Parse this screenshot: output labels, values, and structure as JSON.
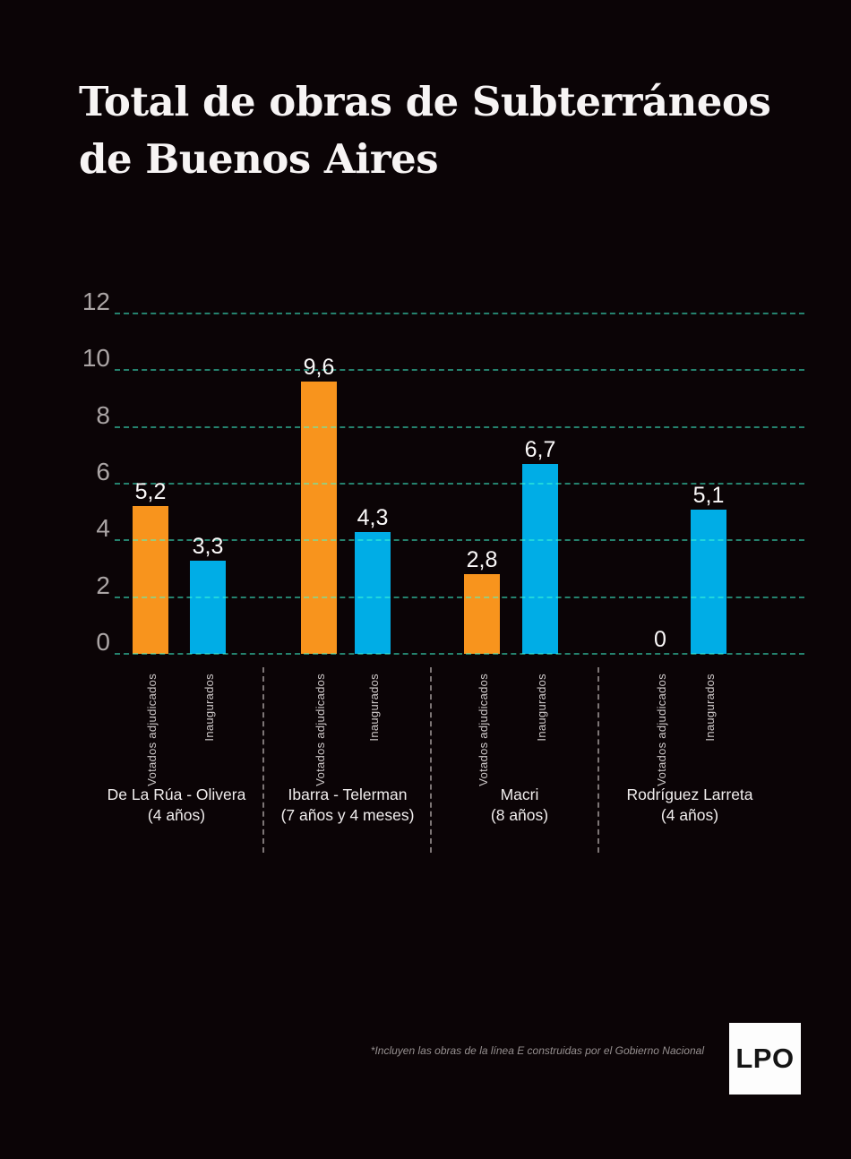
{
  "title": {
    "line1": "Total de obras de Subterráneos",
    "line2": "de Buenos Aires"
  },
  "chart_data": {
    "type": "bar",
    "title": "Total de obras de Subterráneos de Buenos Aires",
    "categories": [
      "De La Rúa - Olivera (4 años)",
      "Ibarra - Telerman (7 años y 4 meses)",
      "Macri (8 años)",
      "Rodríguez Larreta (4 años)"
    ],
    "series": [
      {
        "name": "Votados adjudicados",
        "color": "#f8941d",
        "values": [
          5.2,
          9.6,
          2.8,
          0
        ]
      },
      {
        "name": "Inaugurados",
        "color": "#00ade6",
        "values": [
          3.3,
          4.3,
          6.7,
          5.1
        ]
      }
    ],
    "value_labels": [
      [
        "5,2",
        "9,6",
        "2,8",
        "0"
      ],
      [
        "3,3",
        "4,3",
        "6,7",
        "5,1"
      ]
    ],
    "y_ticks": [
      0,
      2,
      4,
      6,
      8,
      10,
      12
    ],
    "ylim": [
      0,
      12
    ],
    "grid": "horizontal-dashed-teal",
    "legend_position": "none"
  },
  "groups": [
    {
      "name": "De La Rúa - Olivera",
      "years": "(4 años)"
    },
    {
      "name": "Ibarra - Telerman",
      "years": "(7 años y 4 meses)"
    },
    {
      "name": "Macri",
      "years": "(8 años)"
    },
    {
      "name": "Rodríguez Larreta",
      "years": "(4 años)"
    }
  ],
  "footnote": "*Incluyen las obras de la línea E construidas por el Gobierno Nacional",
  "logo": {
    "text": "LPO"
  },
  "colors": {
    "background": "#0b0406",
    "orange_bar": "#f8941d",
    "blue_bar": "#00ade6",
    "gridline": "#1e8c78",
    "axis_labels": "#aba5a5",
    "text": "#f7f4f4"
  }
}
